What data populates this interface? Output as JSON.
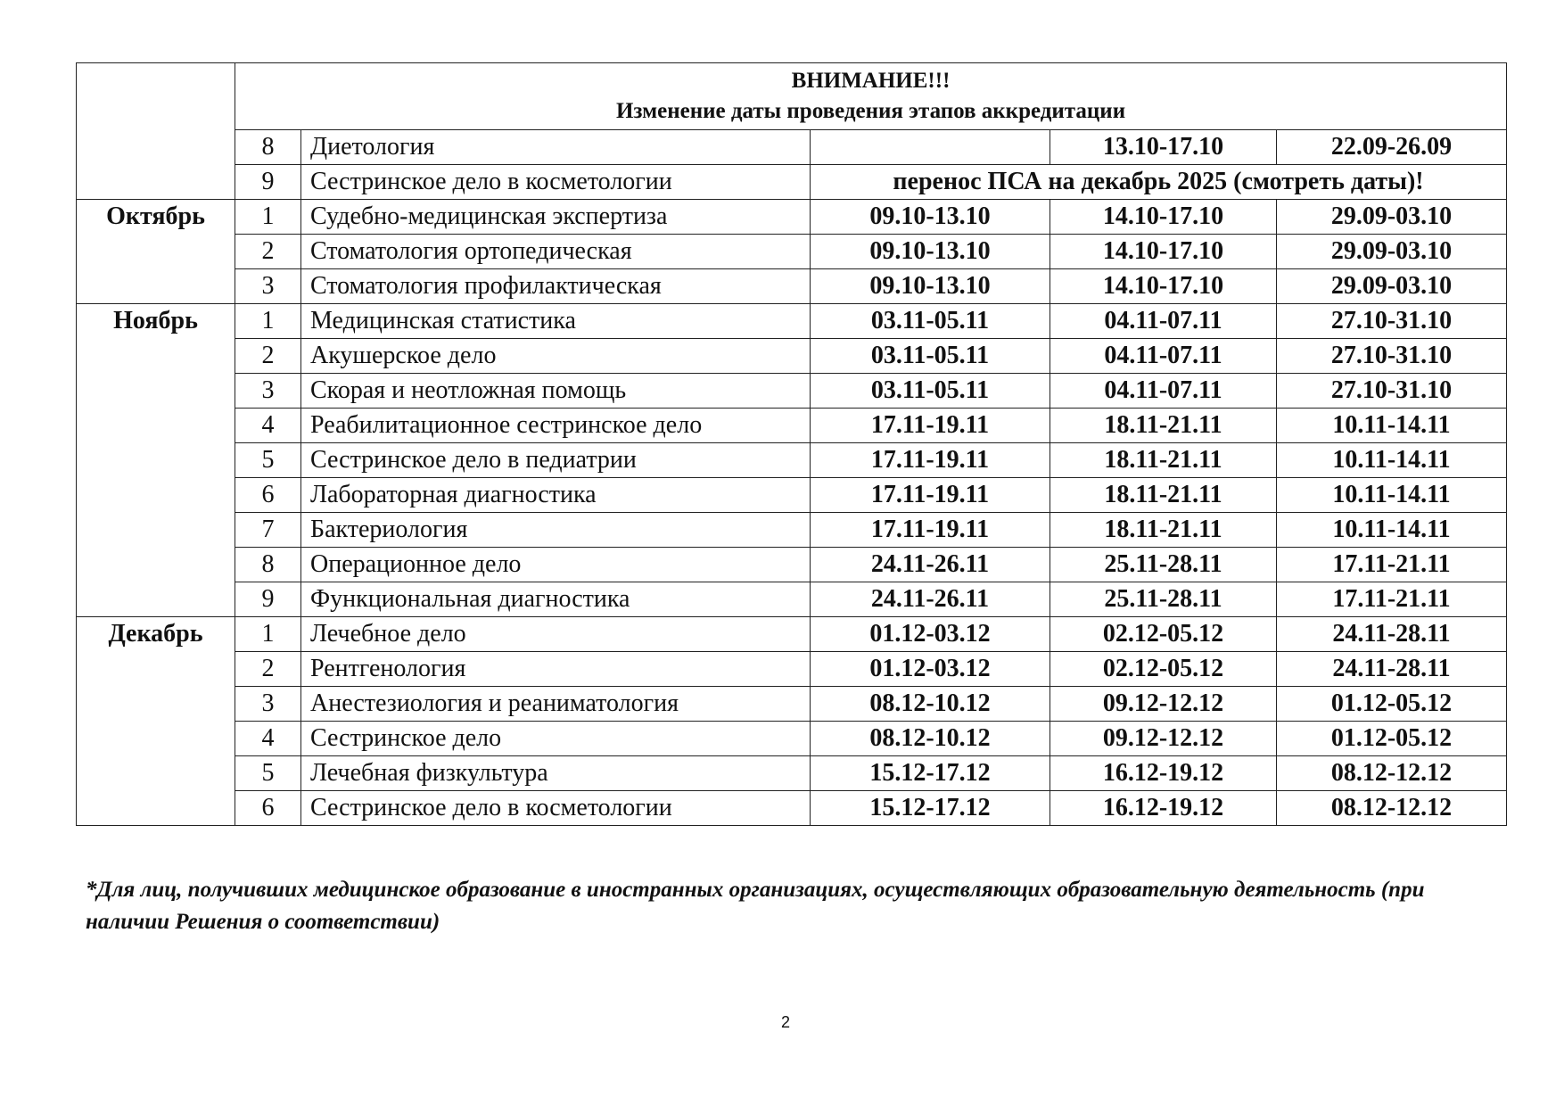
{
  "header": {
    "line1": "ВНИМАНИЕ!!!",
    "line2": "Изменение даты проведения этапов аккредитации"
  },
  "pre_rows": [
    {
      "num": "8",
      "name": "Диетология",
      "d1": "",
      "d2": "13.10-17.10",
      "d3": "22.09-26.09"
    },
    {
      "num": "9",
      "name": "Сестринское дело в косметологии",
      "merged": "перенос ПСА на декабрь 2025 (смотреть даты)!"
    }
  ],
  "months": [
    {
      "month": "Октябрь",
      "rows": [
        {
          "num": "1",
          "name": "Судебно-медицинская экспертиза",
          "d1": "09.10-13.10",
          "d2": "14.10-17.10",
          "d3": "29.09-03.10"
        },
        {
          "num": "2",
          "name": "Стоматология ортопедическая",
          "d1": "09.10-13.10",
          "d2": "14.10-17.10",
          "d3": "29.09-03.10"
        },
        {
          "num": "3",
          "name": "Стоматология профилактическая",
          "d1": "09.10-13.10",
          "d2": "14.10-17.10",
          "d3": "29.09-03.10"
        }
      ]
    },
    {
      "month": "Ноябрь",
      "rows": [
        {
          "num": "1",
          "name": "Медицинская статистика",
          "d1": "03.11-05.11",
          "d2": "04.11-07.11",
          "d3": "27.10-31.10"
        },
        {
          "num": "2",
          "name": "Акушерское дело",
          "d1": "03.11-05.11",
          "d2": "04.11-07.11",
          "d3": "27.10-31.10"
        },
        {
          "num": "3",
          "name": "Скорая и неотложная помощь",
          "d1": "03.11-05.11",
          "d2": "04.11-07.11",
          "d3": "27.10-31.10"
        },
        {
          "num": "4",
          "name": "Реабилитационное сестринское дело",
          "d1": "17.11-19.11",
          "d2": "18.11-21.11",
          "d3": "10.11-14.11"
        },
        {
          "num": "5",
          "name": "Сестринское дело в педиатрии",
          "d1": "17.11-19.11",
          "d2": "18.11-21.11",
          "d3": "10.11-14.11"
        },
        {
          "num": "6",
          "name": "Лабораторная диагностика",
          "d1": "17.11-19.11",
          "d2": "18.11-21.11",
          "d3": "10.11-14.11"
        },
        {
          "num": "7",
          "name": "Бактериология",
          "d1": "17.11-19.11",
          "d2": "18.11-21.11",
          "d3": "10.11-14.11"
        },
        {
          "num": "8",
          "name": "Операционное дело",
          "d1": "24.11-26.11",
          "d2": "25.11-28.11",
          "d3": "17.11-21.11"
        },
        {
          "num": "9",
          "name": "Функциональная диагностика",
          "d1": "24.11-26.11",
          "d2": "25.11-28.11",
          "d3": "17.11-21.11"
        }
      ]
    },
    {
      "month": "Декабрь",
      "rows": [
        {
          "num": "1",
          "name": "Лечебное дело",
          "d1": "01.12-03.12",
          "d2": "02.12-05.12",
          "d3": "24.11-28.11"
        },
        {
          "num": "2",
          "name": "Рентгенология",
          "d1": "01.12-03.12",
          "d2": "02.12-05.12",
          "d3": "24.11-28.11"
        },
        {
          "num": "3",
          "name": "Анестезиология и реаниматология",
          "d1": "08.12-10.12",
          "d2": "09.12-12.12",
          "d3": "01.12-05.12"
        },
        {
          "num": "4",
          "name": "Сестринское дело",
          "d1": "08.12-10.12",
          "d2": "09.12-12.12",
          "d3": "01.12-05.12"
        },
        {
          "num": "5",
          "name": "Лечебная физкультура",
          "d1": "15.12-17.12",
          "d2": "16.12-19.12",
          "d3": "08.12-12.12"
        },
        {
          "num": "6",
          "name": "Сестринское дело в косметологии",
          "d1": "15.12-17.12",
          "d2": "16.12-19.12",
          "d3": "08.12-12.12"
        }
      ]
    }
  ],
  "footnote": "*Для лиц, получивших медицинское образование в иностранных организациях, осуществляющих образовательную деятельность (при наличии Решения о соответствии)",
  "page_number": "2"
}
